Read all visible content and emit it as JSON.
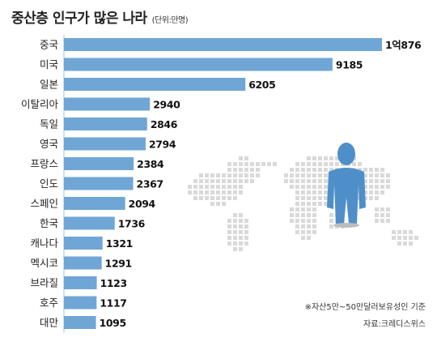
{
  "title": "중산층 인구가 많은 나라",
  "unit": "(단위:만명)",
  "note": "※자산5만~50만달러보유성인 기준",
  "source": "자료:크레디스위스",
  "colors": {
    "bar": "#6fa6d6",
    "figure": "#4f8fc9",
    "map": "#d9d9d9",
    "axis": "#9cc3e6"
  },
  "chart_data": {
    "type": "bar",
    "orientation": "horizontal",
    "categories": [
      "중국",
      "미국",
      "일본",
      "이탈리아",
      "독일",
      "영국",
      "프랑스",
      "인도",
      "스페인",
      "한국",
      "캐나다",
      "멕시코",
      "브라질",
      "호주",
      "대만"
    ],
    "values": [
      10876,
      9185,
      6205,
      2940,
      2846,
      2794,
      2384,
      2367,
      2094,
      1736,
      1321,
      1291,
      1123,
      1117,
      1095
    ],
    "value_labels": [
      "1억876",
      "9185",
      "6205",
      "2940",
      "2846",
      "2794",
      "2384",
      "2367",
      "2094",
      "1736",
      "1321",
      "1291",
      "1123",
      "1117",
      "1095"
    ],
    "title": "중산층 인구가 많은 나라",
    "xlabel": "",
    "ylabel": "",
    "xlim": [
      0,
      10876
    ],
    "grid": false,
    "legend": "none"
  }
}
